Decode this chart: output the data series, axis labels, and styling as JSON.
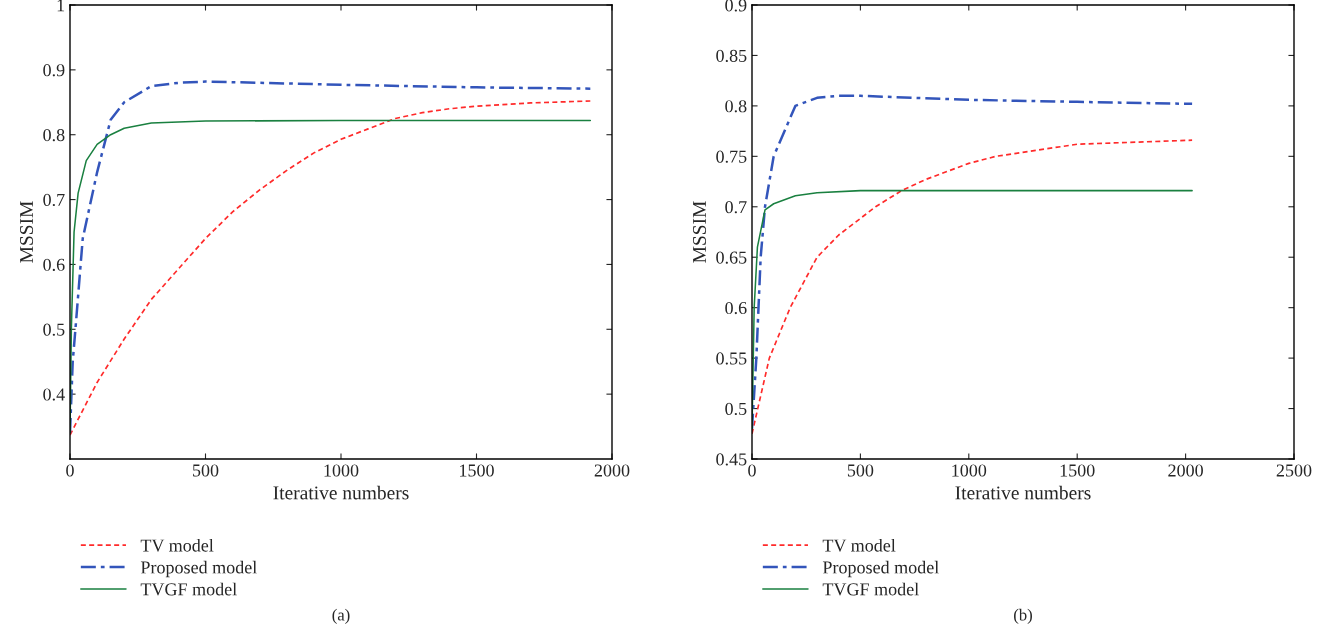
{
  "chart_data": [
    {
      "type": "line",
      "xlabel": "Iterative numbers",
      "ylabel": "MSSIM",
      "xlim": [
        0,
        2000
      ],
      "xticks": [
        0,
        500,
        1000,
        1500,
        2000
      ],
      "ylim": [
        0.3,
        1
      ],
      "yticks": [
        0.4,
        0.5,
        0.6,
        0.7,
        0.8,
        0.9,
        1
      ],
      "grid": false,
      "legend": "bottom left",
      "annotations": [
        "(a)"
      ],
      "series": [
        {
          "name": "TV model",
          "color": "#ff2a2a",
          "line_style": "dashed",
          "x": [
            0,
            100,
            200,
            300,
            400,
            500,
            600,
            700,
            800,
            900,
            1000,
            1100,
            1200,
            1300,
            1400,
            1500,
            1700,
            1920
          ],
          "values": [
            0.337,
            0.418,
            0.485,
            0.546,
            0.593,
            0.64,
            0.681,
            0.715,
            0.745,
            0.772,
            0.793,
            0.809,
            0.825,
            0.834,
            0.84,
            0.844,
            0.849,
            0.852
          ]
        },
        {
          "name": "Proposed model",
          "color": "#3355bb",
          "line_style": "dashdot",
          "x": [
            0,
            10,
            20,
            47,
            100,
            150,
            200,
            300,
            400,
            500,
            700,
            1000,
            1500,
            1920
          ],
          "values": [
            0.34,
            0.45,
            0.5,
            0.64,
            0.742,
            0.823,
            0.85,
            0.875,
            0.88,
            0.882,
            0.88,
            0.877,
            0.873,
            0.871
          ]
        },
        {
          "name": "TVGF model",
          "color": "#1a8040",
          "line_style": "solid",
          "x": [
            0,
            5,
            15,
            30,
            60,
            100,
            150,
            200,
            300,
            500,
            1000,
            1920
          ],
          "values": [
            0.34,
            0.5,
            0.65,
            0.71,
            0.76,
            0.785,
            0.8,
            0.81,
            0.818,
            0.821,
            0.822,
            0.822
          ]
        }
      ]
    },
    {
      "type": "line",
      "xlabel": "Iterative numbers",
      "ylabel": "MSSIM",
      "xlim": [
        0,
        2500
      ],
      "xticks": [
        0,
        500,
        1000,
        1500,
        2000,
        2500
      ],
      "ylim": [
        0.45,
        0.9
      ],
      "yticks": [
        0.45,
        0.5,
        0.55,
        0.6,
        0.65,
        0.7,
        0.75,
        0.8,
        0.85,
        0.9
      ],
      "grid": false,
      "legend": "bottom left",
      "annotations": [
        "(b)"
      ],
      "series": [
        {
          "name": "TV model",
          "color": "#ff2a2a",
          "line_style": "dashed",
          "x": [
            0,
            80,
            176,
            300,
            400,
            570,
            690,
            800,
            1000,
            1125,
            1500,
            2030
          ],
          "values": [
            0.475,
            0.55,
            0.6,
            0.65,
            0.672,
            0.7,
            0.716,
            0.727,
            0.743,
            0.75,
            0.762,
            0.766
          ]
        },
        {
          "name": "Proposed model",
          "color": "#3355bb",
          "line_style": "dashdot",
          "x": [
            0,
            20,
            40,
            60,
            100,
            200,
            300,
            400,
            500,
            1000,
            1500,
            2030
          ],
          "values": [
            0.48,
            0.55,
            0.65,
            0.7,
            0.75,
            0.8,
            0.808,
            0.81,
            0.81,
            0.806,
            0.804,
            0.802
          ]
        },
        {
          "name": "TVGF model",
          "color": "#1a8040",
          "line_style": "solid",
          "x": [
            0,
            10,
            25,
            60,
            100,
            200,
            300,
            500,
            1000,
            2030
          ],
          "values": [
            0.48,
            0.6,
            0.66,
            0.697,
            0.703,
            0.711,
            0.714,
            0.716,
            0.716,
            0.716
          ]
        }
      ]
    }
  ]
}
